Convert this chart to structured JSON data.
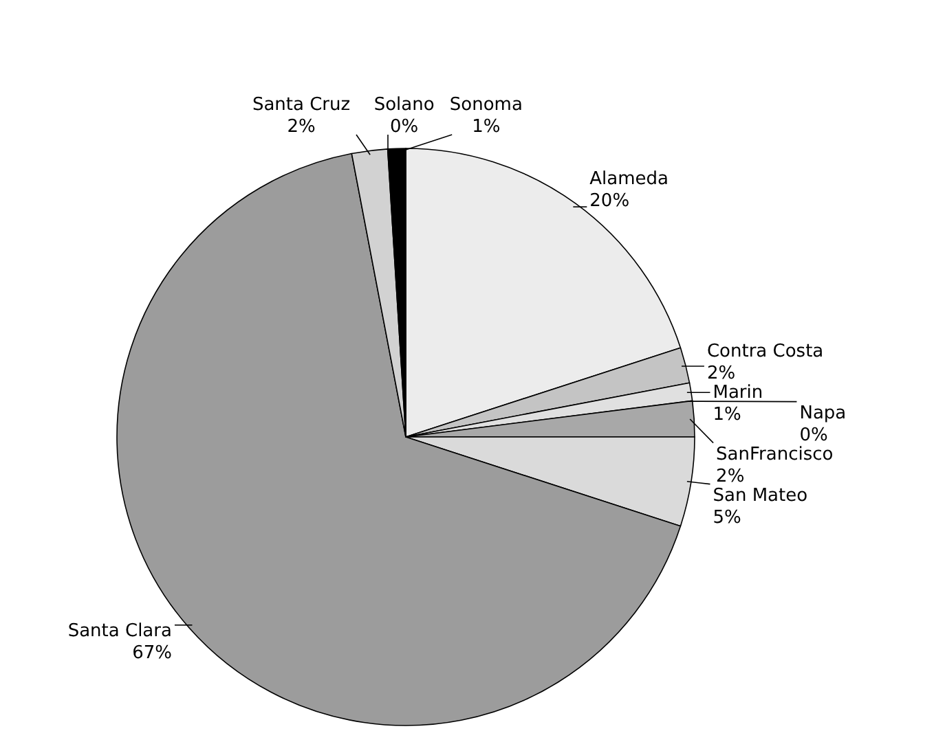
{
  "chart_data": {
    "type": "pie",
    "categories": [
      "Alameda",
      "Contra Costa",
      "Marin",
      "Napa",
      "SanFrancisco",
      "San Mateo",
      "Santa Clara",
      "Santa Cruz",
      "Solano",
      "Sonoma"
    ],
    "values": [
      20,
      2,
      1,
      0,
      2,
      5,
      67,
      2,
      0,
      1
    ],
    "value_labels": [
      "20%",
      "2%",
      "1%",
      "0%",
      "2%",
      "5%",
      "67%",
      "2%",
      "0%",
      "1%"
    ],
    "colors": [
      "#ececec",
      "#c4c4c4",
      "#e0e0e0",
      "#f4f4f4",
      "#a8a8a8",
      "#dadada",
      "#9c9c9c",
      "#d2d2d2",
      "#f0f0f0",
      "#000000"
    ]
  }
}
